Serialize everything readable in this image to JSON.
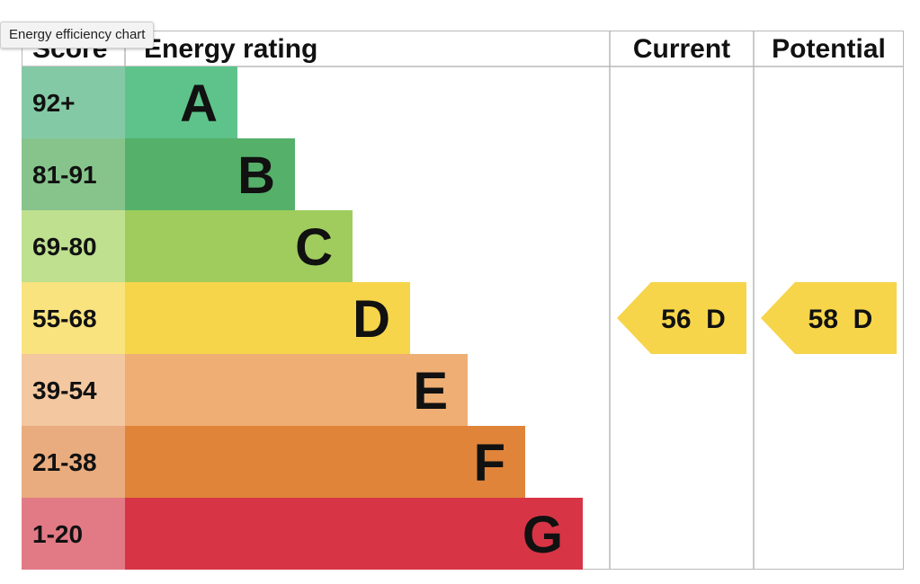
{
  "tooltip": "Energy efficiency chart",
  "headers": {
    "score": "Score",
    "rating": "Energy rating",
    "current": "Current",
    "potential": "Potential"
  },
  "chart_data": {
    "type": "bar",
    "bands": [
      {
        "score": "92+",
        "letter": "A",
        "bar_color": "#5ec38a",
        "score_bg": "#84c9a6",
        "relative_length": 1
      },
      {
        "score": "81-91",
        "letter": "B",
        "bar_color": "#55b06a",
        "score_bg": "#86c48c",
        "relative_length": 2
      },
      {
        "score": "69-80",
        "letter": "C",
        "bar_color": "#9fcc5d",
        "score_bg": "#bfe08f",
        "relative_length": 3
      },
      {
        "score": "55-68",
        "letter": "D",
        "bar_color": "#f6d54a",
        "score_bg": "#f9e37e",
        "relative_length": 4
      },
      {
        "score": "39-54",
        "letter": "E",
        "bar_color": "#eeae74",
        "score_bg": "#f3c8a0",
        "relative_length": 5
      },
      {
        "score": "21-38",
        "letter": "F",
        "bar_color": "#e0843a",
        "score_bg": "#e9ac7e",
        "relative_length": 6
      },
      {
        "score": "1-20",
        "letter": "G",
        "bar_color": "#d73545",
        "score_bg": "#e27a86",
        "relative_length": 7
      }
    ],
    "current": {
      "value": 56,
      "letter": "D",
      "label": "56  D",
      "color": "#f6d54a"
    },
    "potential": {
      "value": 58,
      "letter": "D",
      "label": "58  D",
      "color": "#f6d54a"
    },
    "grid_color": "#b9b9b9"
  }
}
